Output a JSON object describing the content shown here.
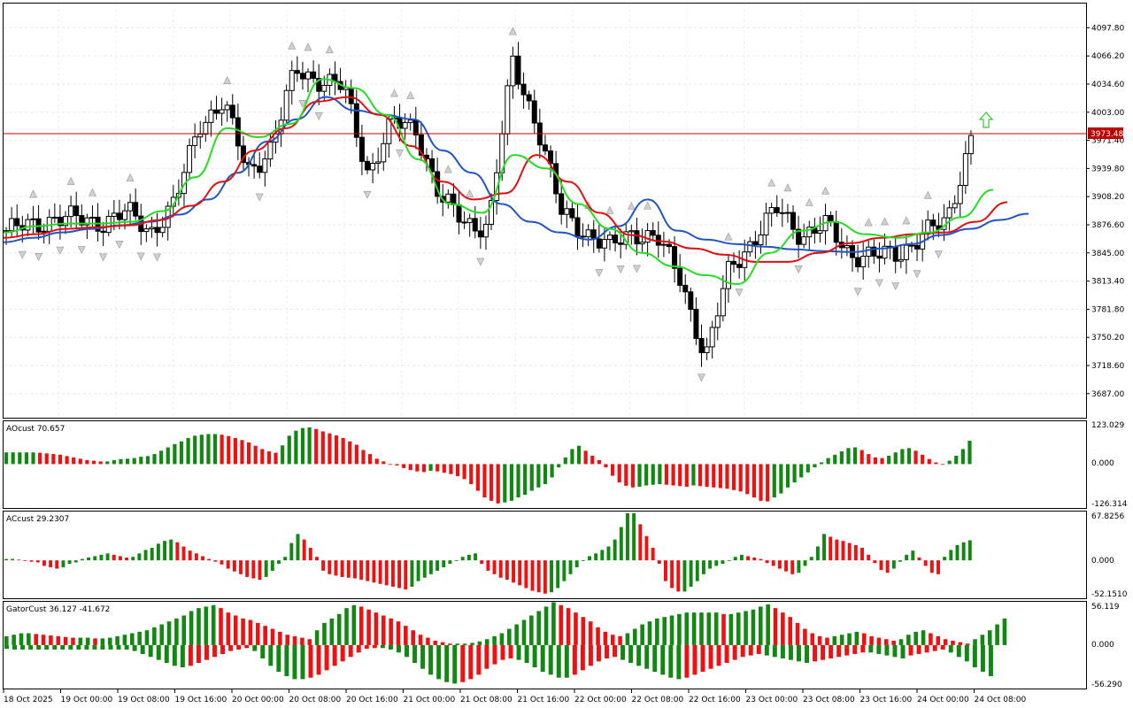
{
  "chart_data": {
    "type": "candlestick",
    "price_axis_ticks": [
      "4097.80",
      "4066.20",
      "4034.60",
      "4003.00",
      "3971.40",
      "3939.80",
      "3908.20",
      "3876.60",
      "3845.00",
      "3813.40",
      "3781.80",
      "3750.20",
      "3718.60",
      "3687.00"
    ],
    "current_price": "3973.48",
    "ylim": [
      3660,
      4125
    ],
    "time_labels": [
      "18 Oct 2025",
      "19 Oct 00:00",
      "19 Oct 08:00",
      "19 Oct 16:00",
      "20 Oct 00:00",
      "20 Oct 08:00",
      "20 Oct 16:00",
      "21 Oct 00:00",
      "21 Oct 08:00",
      "21 Oct 16:00",
      "22 Oct 00:00",
      "22 Oct 08:00",
      "22 Oct 16:00",
      "23 Oct 00:00",
      "23 Oct 08:00",
      "23 Oct 16:00",
      "24 Oct 00:00",
      "24 Oct 08:00"
    ],
    "anchor_closes": [
      3870,
      3875,
      3885,
      3882,
      3880,
      3890,
      3870,
      3900,
      3990,
      4015,
      3935,
      3965,
      4050,
      4040,
      4030,
      3935,
      3990,
      3985,
      3905,
      3880,
      3875,
      4060,
      3990,
      3890,
      3870,
      3850,
      3870,
      3860,
      3815,
      3725,
      3830,
      3860,
      3895,
      3865,
      3875,
      3845,
      3840,
      3845,
      3865,
      3880,
      3975
    ],
    "ohlc_seed_note": "",
    "alligator": {
      "jaw": [
        3857,
        3862,
        3868,
        3872,
        3876,
        3880,
        3888,
        3905,
        3935,
        3970,
        3995,
        4020,
        4005,
        4000,
        3995,
        3960,
        3935,
        3900,
        3880,
        3868,
        3860,
        3875,
        3905,
        3870,
        3860,
        3855,
        3852,
        3849,
        3847,
        3846,
        3850,
        3855,
        3865,
        3872,
        3882,
        3889
      ],
      "teeth": [
        3862,
        3866,
        3872,
        3874,
        3876,
        3882,
        3898,
        3925,
        3960,
        3985,
        4015,
        4020,
        4000,
        3965,
        3925,
        3905,
        3912,
        3955,
        3925,
        3890,
        3865,
        3858,
        3850,
        3843,
        3835,
        3835,
        3845,
        3856,
        3862,
        3866,
        3868,
        3880,
        3902
      ],
      "lips": [
        3868,
        3875,
        3878,
        3878,
        3880,
        3892,
        3930,
        3985,
        3975,
        3990,
        4040,
        4030,
        4000,
        3950,
        3900,
        3890,
        3955,
        3940,
        3900,
        3872,
        3845,
        3830,
        3820,
        3810,
        3845,
        3870,
        3880,
        3866,
        3862,
        3868,
        3885,
        3916
      ]
    },
    "indicators": [
      {
        "name": "AOcust",
        "value": "70.657",
        "ticks": [
          "123.029",
          "0.000",
          "-126.314"
        ],
        "ylim": [
          -126.314,
          123.029
        ]
      },
      {
        "name": "ACcust",
        "value": "29.2307",
        "ticks": [
          "67.8256",
          "0.000",
          "-52.1510"
        ],
        "ylim": [
          -52.151,
          67.8256
        ]
      },
      {
        "name": "GatorCust",
        "value": "36.127 -41.672",
        "ticks": [
          "56.119",
          "0.000",
          "-56.290"
        ],
        "ylim": [
          -56.29,
          56.119
        ]
      }
    ],
    "ao_values": [
      35,
      35,
      35,
      35,
      35,
      34,
      32,
      30,
      28,
      24,
      20,
      16,
      12,
      10,
      8,
      8,
      12,
      15,
      16,
      18,
      22,
      24,
      30,
      40,
      50,
      60,
      68,
      78,
      85,
      88,
      90,
      90,
      88,
      84,
      78,
      72,
      65,
      55,
      45,
      38,
      34,
      56,
      85,
      100,
      108,
      110,
      105,
      98,
      92,
      86,
      78,
      68,
      58,
      42,
      30,
      16,
      8,
      0,
      -4,
      -12,
      -18,
      -22,
      -24,
      -20,
      -22,
      -26,
      -30,
      -36,
      -45,
      -60,
      -80,
      -100,
      -110,
      -118,
      -115,
      -110,
      -100,
      -92,
      -80,
      -70,
      -60,
      -40,
      -10,
      20,
      45,
      55,
      40,
      25,
      12,
      -10,
      -35,
      -55,
      -65,
      -70,
      -68,
      -64,
      -62,
      -60,
      -62,
      -64,
      -66,
      -68,
      -64,
      -66,
      -68,
      -70,
      -72,
      -74,
      -78,
      -82,
      -90,
      -100,
      -110,
      -112,
      -100,
      -88,
      -70,
      -55,
      -40,
      -25,
      -10,
      5,
      18,
      28,
      38,
      48,
      50,
      42,
      30,
      20,
      18,
      25,
      35,
      45,
      48,
      40,
      28,
      15,
      5,
      0,
      10,
      25,
      45,
      70
    ],
    "ac_values": [
      2,
      2,
      1,
      0,
      -2,
      -3,
      -8,
      -10,
      -12,
      -10,
      -5,
      -3,
      2,
      4,
      6,
      8,
      10,
      8,
      6,
      4,
      5,
      10,
      15,
      18,
      24,
      28,
      30,
      26,
      20,
      14,
      10,
      6,
      2,
      -2,
      -6,
      -12,
      -16,
      -20,
      -24,
      -26,
      -28,
      -24,
      -15,
      -5,
      5,
      25,
      38,
      30,
      18,
      5,
      -15,
      -20,
      -22,
      -24,
      -25,
      -26,
      -28,
      -30,
      -32,
      -34,
      -36,
      -38,
      -40,
      -42,
      -38,
      -30,
      -25,
      -20,
      -15,
      -10,
      -5,
      0,
      5,
      8,
      10,
      -5,
      -15,
      -20,
      -25,
      -28,
      -32,
      -36,
      -40,
      -44,
      -46,
      -48,
      -46,
      -40,
      -30,
      -20,
      -10,
      0,
      6,
      10,
      15,
      20,
      30,
      48,
      68,
      68,
      52,
      35,
      18,
      -5,
      -30,
      -40,
      -45,
      -45,
      -38,
      -30,
      -20,
      -12,
      -8,
      -5,
      0,
      5,
      8,
      6,
      4,
      2,
      -4,
      -8,
      -12,
      -16,
      -20,
      -18,
      -8,
      5,
      20,
      38,
      34,
      30,
      28,
      25,
      22,
      18,
      8,
      -4,
      -14,
      -18,
      -12,
      -2,
      8,
      14,
      4,
      -8,
      -18,
      -20,
      5,
      15,
      22,
      26,
      29
    ],
    "gator_upper": [
      12,
      14,
      16,
      16,
      15,
      14,
      13,
      12,
      11,
      10,
      10,
      10,
      9,
      9,
      10,
      12,
      14,
      16,
      18,
      20,
      24,
      28,
      32,
      36,
      40,
      46,
      50,
      52,
      54,
      50,
      44,
      40,
      36,
      34,
      30,
      26,
      22,
      18,
      14,
      12,
      10,
      8,
      20,
      30,
      36,
      42,
      50,
      54,
      52,
      48,
      44,
      40,
      36,
      32,
      26,
      20,
      14,
      10,
      6,
      4,
      2,
      2,
      2,
      3,
      5,
      8,
      12,
      16,
      22,
      28,
      34,
      40,
      46,
      52,
      58,
      54,
      50,
      44,
      38,
      32,
      24,
      18,
      14,
      12,
      16,
      22,
      28,
      32,
      36,
      38,
      40,
      42,
      44,
      44,
      44,
      44,
      44,
      42,
      42,
      44,
      46,
      48,
      52,
      55,
      50,
      44,
      38,
      30,
      22,
      16,
      12,
      10,
      12,
      14,
      16,
      18,
      16,
      12,
      10,
      8,
      6,
      8,
      14,
      18,
      20,
      16,
      12,
      8,
      6,
      4,
      2,
      8,
      14,
      20,
      28,
      36
    ],
    "gator_lower": [
      -5,
      -6,
      -6,
      -6,
      -6,
      -6,
      -6,
      -6,
      -6,
      -6,
      -6,
      -6,
      -6,
      -6,
      -6,
      -6,
      -8,
      -12,
      -16,
      -20,
      -24,
      -28,
      -30,
      -28,
      -24,
      -20,
      -16,
      -12,
      -8,
      -6,
      -4,
      -8,
      -18,
      -28,
      -36,
      -42,
      -46,
      -46,
      -44,
      -40,
      -34,
      -28,
      -22,
      -16,
      -10,
      -5,
      -4,
      -4,
      -6,
      -10,
      -16,
      -24,
      -32,
      -40,
      -46,
      -50,
      -52,
      -50,
      -46,
      -40,
      -32,
      -26,
      -20,
      -18,
      -20,
      -24,
      -30,
      -36,
      -40,
      -44,
      -44,
      -40,
      -34,
      -28,
      -22,
      -18,
      -16,
      -20,
      -24,
      -28,
      -32,
      -36,
      -40,
      -44,
      -46,
      -44,
      -40,
      -36,
      -32,
      -28,
      -24,
      -20,
      -16,
      -14,
      -12,
      -14,
      -16,
      -18,
      -20,
      -22,
      -24,
      -22,
      -20,
      -18,
      -16,
      -14,
      -12,
      -10,
      -10,
      -12,
      -14,
      -16,
      -18,
      -14,
      -12,
      -10,
      -8,
      -6,
      -10,
      -16,
      -22,
      -30,
      -36,
      -42
    ]
  }
}
